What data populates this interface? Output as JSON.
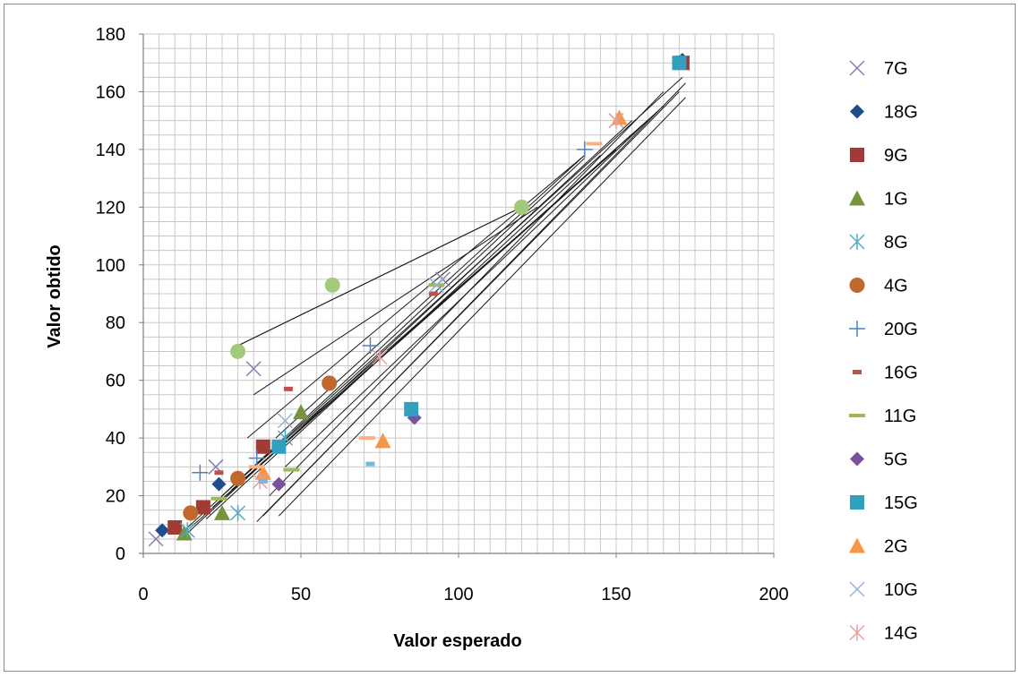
{
  "chart_data": {
    "type": "scatter",
    "xlabel": "Valor esperado",
    "ylabel": "Valor obtido",
    "xlim": [
      0,
      200
    ],
    "ylim": [
      0,
      180
    ],
    "x_ticks": [
      0,
      50,
      100,
      150,
      200
    ],
    "y_ticks": [
      0,
      20,
      40,
      60,
      80,
      100,
      120,
      140,
      160,
      180
    ],
    "grid": true,
    "legend_position": "right",
    "series": [
      {
        "name": "7G",
        "marker": "x",
        "color": "#8a7cb6",
        "points": [
          [
            4,
            5
          ],
          [
            23,
            30
          ],
          [
            35,
            64
          ],
          [
            95,
            95
          ],
          [
            171,
            170
          ]
        ]
      },
      {
        "name": "18G",
        "marker": "diamond",
        "color": "#1f4e8c",
        "points": [
          [
            6,
            8
          ],
          [
            24,
            24
          ],
          [
            171,
            171
          ]
        ]
      },
      {
        "name": "9G",
        "marker": "square",
        "color": "#a33b35",
        "points": [
          [
            10,
            9
          ],
          [
            19,
            16
          ],
          [
            38,
            37
          ],
          [
            171,
            170
          ]
        ]
      },
      {
        "name": "1G",
        "marker": "triangle",
        "color": "#77933c",
        "points": [
          [
            13,
            7
          ],
          [
            25,
            14
          ],
          [
            50,
            49
          ]
        ]
      },
      {
        "name": "8G",
        "marker": "asterisk",
        "color": "#4bacc6",
        "points": [
          [
            14,
            8
          ],
          [
            30,
            14
          ],
          [
            45,
            40
          ]
        ]
      },
      {
        "name": "4G",
        "marker": "circle",
        "color": "#c0682e",
        "points": [
          [
            15,
            14
          ],
          [
            30,
            26
          ],
          [
            59,
            59
          ]
        ]
      },
      {
        "name": "20G",
        "marker": "plus",
        "color": "#4f81bd",
        "points": [
          [
            18,
            28
          ],
          [
            36,
            33
          ],
          [
            72,
            72
          ],
          [
            140,
            140
          ]
        ]
      },
      {
        "name": "16G",
        "marker": "dash",
        "color": "#c0504d",
        "points": [
          [
            24,
            28
          ],
          [
            46,
            57
          ],
          [
            92,
            90
          ]
        ]
      },
      {
        "name": "11G",
        "marker": "hline",
        "color": "#9bbb59",
        "points": [
          [
            24,
            19
          ],
          [
            47,
            29
          ],
          [
            93,
            93
          ]
        ]
      },
      {
        "name": "5G",
        "marker": "diamond",
        "color": "#7b519e",
        "points": [
          [
            43,
            24
          ],
          [
            86,
            47
          ]
        ]
      },
      {
        "name": "15G",
        "marker": "square",
        "color": "#31a0c0",
        "points": [
          [
            43,
            37
          ],
          [
            85,
            50
          ],
          [
            170,
            170
          ]
        ]
      },
      {
        "name": "2G",
        "marker": "triangle",
        "color": "#f79646",
        "points": [
          [
            38,
            28
          ],
          [
            76,
            39
          ],
          [
            151,
            151
          ]
        ]
      },
      {
        "name": "10G",
        "marker": "x",
        "color": "#95b3d7",
        "points": [
          [
            45,
            46
          ],
          [
            93,
            93
          ],
          [
            150,
            150
          ]
        ]
      },
      {
        "name": "14G",
        "marker": "asterisk",
        "color": "#e6a0a0",
        "points": [
          [
            37,
            25
          ],
          [
            75,
            68
          ],
          [
            150,
            150
          ]
        ]
      },
      {
        "name": "",
        "marker": "circle",
        "color": "#a3c97a",
        "points": [
          [
            30,
            70
          ],
          [
            60,
            93
          ],
          [
            120,
            120
          ]
        ]
      },
      {
        "name": "",
        "marker": "hline",
        "color": "#f9b183",
        "points": [
          [
            36,
            30
          ],
          [
            71,
            40
          ],
          [
            143,
            142
          ]
        ]
      },
      {
        "name": "",
        "marker": "dash",
        "color": "#75b9d9",
        "points": [
          [
            38,
            25
          ],
          [
            72,
            31
          ]
        ]
      }
    ],
    "trendlines": [
      [
        [
          30,
          72
        ],
        [
          120,
          120
        ]
      ],
      [
        [
          30,
          72
        ],
        [
          120,
          120
        ]
      ],
      [
        [
          12,
          7
        ],
        [
          171,
          165
        ]
      ],
      [
        [
          12,
          5
        ],
        [
          155,
          150
        ]
      ],
      [
        [
          14,
          8
        ],
        [
          165,
          155
        ]
      ],
      [
        [
          20,
          12
        ],
        [
          145,
          138
        ]
      ],
      [
        [
          22,
          16
        ],
        [
          150,
          140
        ]
      ],
      [
        [
          25,
          20
        ],
        [
          140,
          137
        ]
      ],
      [
        [
          28,
          22
        ],
        [
          160,
          150
        ]
      ],
      [
        [
          30,
          25
        ],
        [
          150,
          140
        ]
      ],
      [
        [
          33,
          40
        ],
        [
          140,
          138
        ]
      ],
      [
        [
          35,
          55
        ],
        [
          125,
          120
        ]
      ],
      [
        [
          36,
          11
        ],
        [
          170,
          160
        ]
      ],
      [
        [
          38,
          13
        ],
        [
          172,
          163
        ]
      ],
      [
        [
          40,
          20
        ],
        [
          165,
          160
        ]
      ],
      [
        [
          43,
          13
        ],
        [
          172,
          158
        ]
      ],
      [
        [
          45,
          30
        ],
        [
          160,
          150
        ]
      ],
      [
        [
          42,
          40
        ],
        [
          140,
          138
        ]
      ]
    ]
  }
}
